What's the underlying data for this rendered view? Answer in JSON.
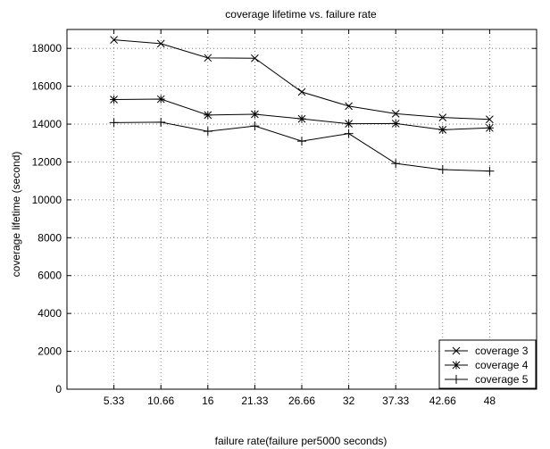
{
  "chart_data": {
    "type": "line",
    "title": "coverage lifetime vs. failure rate",
    "xlabel": "failure rate(failure per5000 seconds)",
    "ylabel": "coverage lifetime (second)",
    "categories": [
      "5.33",
      "10.66",
      "16",
      "21.33",
      "26.66",
      "32",
      "37.33",
      "42.66",
      "48"
    ],
    "ylim": [
      0,
      19000
    ],
    "yticks": [
      0,
      2000,
      4000,
      6000,
      8000,
      10000,
      12000,
      14000,
      16000,
      18000
    ],
    "grid": true,
    "legend_position": "bottom-right",
    "series": [
      {
        "name": "coverage 3",
        "marker": "x",
        "values": [
          18450,
          18250,
          17500,
          17480,
          15700,
          14950,
          14550,
          14350,
          14250
        ]
      },
      {
        "name": "coverage 4",
        "marker": "asterisk",
        "values": [
          15300,
          15320,
          14480,
          14520,
          14280,
          14020,
          14030,
          13700,
          13800
        ]
      },
      {
        "name": "coverage 5",
        "marker": "plus",
        "values": [
          14080,
          14100,
          13620,
          13900,
          13100,
          13500,
          11920,
          11600,
          11520
        ]
      }
    ]
  }
}
